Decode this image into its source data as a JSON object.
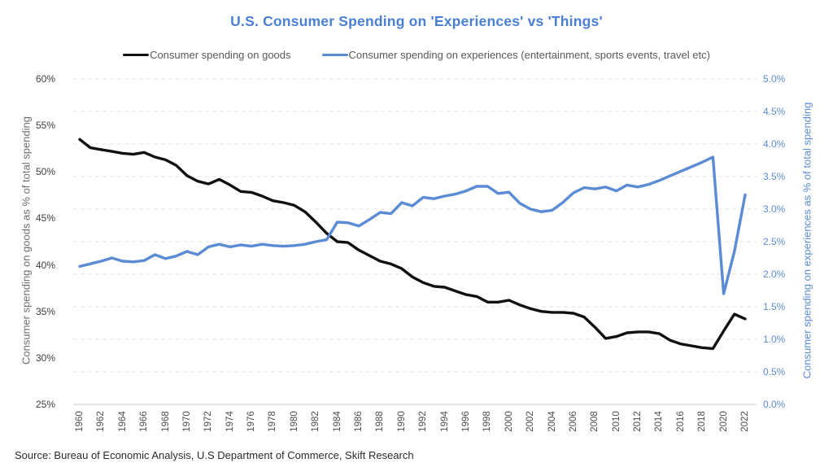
{
  "header": {
    "title": "U.S. Consumer Spending on 'Experiences' vs 'Things'"
  },
  "legend": {
    "items": [
      {
        "label": "Consumer spending on goods",
        "color": "#111111"
      },
      {
        "label": "Consumer spending on experiences (entertainment, sports events, travel etc)",
        "color": "#5b8bd4"
      }
    ]
  },
  "source": "Source: Bureau of Economic Analysis, U.S Department of Commerce, Skift Research",
  "colors": {
    "title": "#4a80d4",
    "goods_line": "#111111",
    "experiences_line": "#5b8bd4",
    "gridline": "#e1e1e1",
    "axis_line": "#c9c9c9"
  },
  "chart_data": {
    "type": "line",
    "title": "U.S. Consumer Spending on 'Experiences' vs 'Things'",
    "legend_position": "top",
    "grid": "horizontal dashed",
    "x": [
      1960,
      1961,
      1962,
      1963,
      1964,
      1965,
      1966,
      1967,
      1968,
      1969,
      1970,
      1971,
      1972,
      1973,
      1974,
      1975,
      1976,
      1977,
      1978,
      1979,
      1980,
      1981,
      1982,
      1983,
      1984,
      1985,
      1986,
      1987,
      1988,
      1989,
      1990,
      1991,
      1992,
      1993,
      1994,
      1995,
      1996,
      1997,
      1998,
      1999,
      2000,
      2001,
      2002,
      2003,
      2004,
      2005,
      2006,
      2007,
      2008,
      2009,
      2010,
      2011,
      2012,
      2013,
      2014,
      2015,
      2016,
      2017,
      2018,
      2019,
      2020,
      2021,
      2022
    ],
    "x_tick_labels": [
      "1960",
      "1962",
      "1964",
      "1966",
      "1968",
      "1970",
      "1972",
      "1974",
      "1976",
      "1978",
      "1980",
      "1982",
      "1984",
      "1986",
      "1988",
      "1990",
      "1992",
      "1994",
      "1996",
      "1998",
      "2000",
      "2002",
      "2004",
      "2006",
      "2008",
      "2010",
      "2012",
      "2014",
      "2016",
      "2018",
      "2020",
      "2022"
    ],
    "left_axis": {
      "label": "Consumer spending on goods as % of total spending",
      "range": [
        25,
        60
      ],
      "ticks": [
        "60%",
        "55%",
        "50%",
        "45%",
        "40%",
        "35%",
        "30%",
        "25%"
      ]
    },
    "right_axis": {
      "label": "Consumer spending on experiences as % of total spending",
      "range": [
        0,
        5
      ],
      "ticks": [
        "5.0%",
        "4.5%",
        "4.0%",
        "3.5%",
        "3.0%",
        "2.5%",
        "2.0%",
        "1.5%",
        "1.0%",
        "0.5%",
        "0.0%"
      ]
    },
    "series": [
      {
        "name": "Consumer spending on goods",
        "axis": "left",
        "color": "#111111",
        "values": [
          53.5,
          52.6,
          52.4,
          52.2,
          52.0,
          51.9,
          52.1,
          51.6,
          51.3,
          50.7,
          49.6,
          49.0,
          48.7,
          49.2,
          48.6,
          47.9,
          47.8,
          47.4,
          46.9,
          46.7,
          46.4,
          45.7,
          44.6,
          43.4,
          42.5,
          42.4,
          41.6,
          41.0,
          40.4,
          40.1,
          39.6,
          38.7,
          38.1,
          37.7,
          37.6,
          37.2,
          36.8,
          36.6,
          36.0,
          36.0,
          36.2,
          35.7,
          35.3,
          35.0,
          34.9,
          34.9,
          34.8,
          34.4,
          33.3,
          32.1,
          32.3,
          32.7,
          32.8,
          32.8,
          32.6,
          31.9,
          31.5,
          31.3,
          31.1,
          31.0,
          32.9,
          34.7,
          34.2
        ]
      },
      {
        "name": "Consumer spending on experiences (entertainment, sports events, travel etc)",
        "axis": "right",
        "color": "#5b8bd4",
        "values": [
          2.12,
          2.16,
          2.2,
          2.25,
          2.2,
          2.19,
          2.21,
          2.3,
          2.24,
          2.28,
          2.35,
          2.3,
          2.42,
          2.46,
          2.42,
          2.45,
          2.43,
          2.46,
          2.44,
          2.43,
          2.44,
          2.46,
          2.5,
          2.53,
          2.8,
          2.79,
          2.74,
          2.84,
          2.95,
          2.93,
          3.1,
          3.05,
          3.18,
          3.16,
          3.2,
          3.23,
          3.28,
          3.35,
          3.35,
          3.24,
          3.26,
          3.09,
          3.0,
          2.96,
          2.98,
          3.1,
          3.25,
          3.33,
          3.31,
          3.34,
          3.28,
          3.37,
          3.34,
          3.38,
          3.44,
          3.51,
          3.58,
          3.65,
          3.72,
          3.8,
          1.7,
          2.35,
          3.22
        ]
      }
    ]
  }
}
